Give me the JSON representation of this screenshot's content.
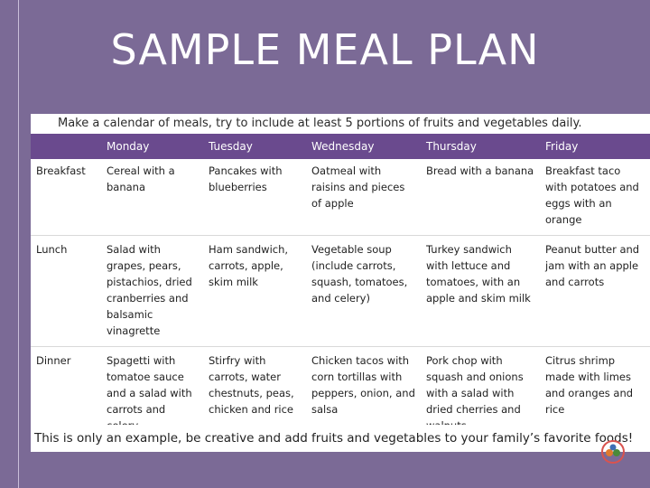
{
  "title": "SAMPLE MEAL PLAN",
  "subtitle": "Make a calendar of meals, try to include at least 5 portions of fruits and vegetables daily.",
  "table": {
    "headers": [
      "",
      "Monday",
      "Tuesday",
      "Wednesday",
      "Thursday",
      "Friday"
    ],
    "rows": [
      {
        "label": "Breakfast",
        "cells": [
          "Cereal with a banana",
          "Pancakes with blueberries",
          "Oatmeal with raisins and pieces of apple",
          "Bread with a banana",
          "Breakfast taco with potatoes and eggs with an orange"
        ]
      },
      {
        "label": "Lunch",
        "cells": [
          "Salad with grapes, pears, pistachios, dried cranberries and balsamic vinagrette",
          "Ham sandwich, carrots, apple, skim milk",
          "Vegetable soup (include carrots, squash, tomatoes, and celery)",
          "Turkey sandwich with lettuce and tomatoes, with an apple and skim milk",
          "Peanut butter and jam with an apple and carrots"
        ]
      },
      {
        "label": "Dinner",
        "cells": [
          "Spagetti with tomatoe sauce and a salad with carrots and celery",
          "Stirfry with carrots, water chestnuts, peas, chicken and rice",
          "Chicken tacos with corn tortillas with peppers, onion, and salsa",
          "Pork chop with squash and onions with a salad with dried cherries and walnuts",
          "Citrus shrimp made with limes and oranges and rice"
        ]
      }
    ]
  },
  "footer_note": "This is only an example, be creative and add fruits and vegetables to your family’s favorite foods!",
  "colors": {
    "background": "#7b6a96",
    "header_row": "#6a4a8e",
    "panel": "#ffffff"
  },
  "icons": {
    "logo": "fruit-logo-icon"
  }
}
